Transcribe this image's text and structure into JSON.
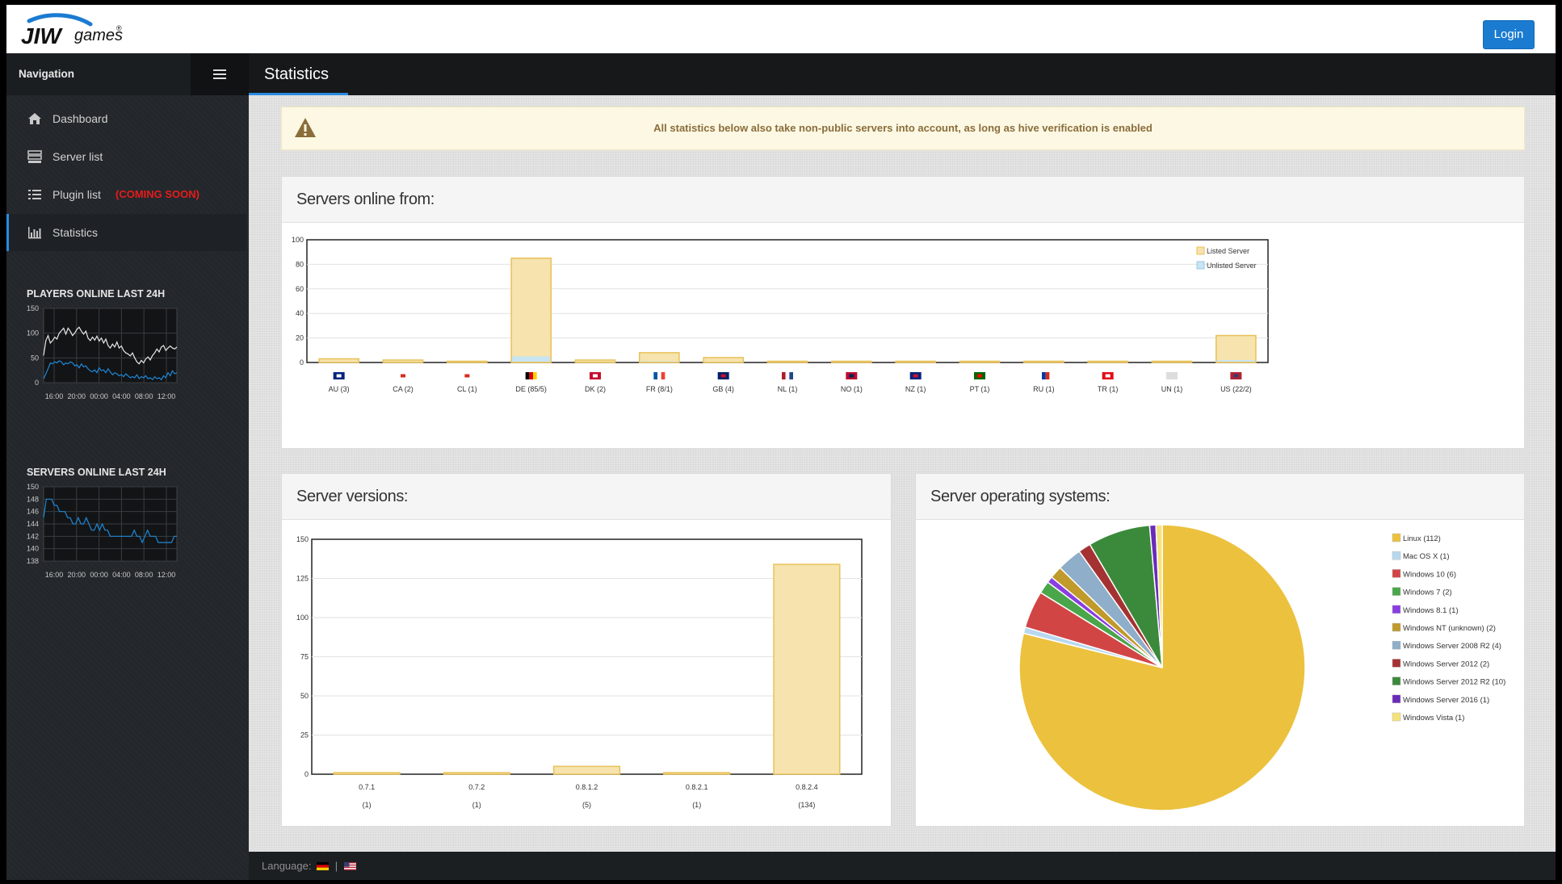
{
  "header": {
    "logo_text": "JIWgames",
    "login_label": "Login"
  },
  "sidebar": {
    "title": "Navigation",
    "items": [
      {
        "label": "Dashboard",
        "icon": "home-icon",
        "active": false
      },
      {
        "label": "Server list",
        "icon": "server-icon",
        "active": false
      },
      {
        "label": "Plugin list",
        "icon": "list-icon",
        "active": false,
        "badge": "(COMING SOON)"
      },
      {
        "label": "Statistics",
        "icon": "bar-chart-icon",
        "active": true
      }
    ],
    "players_heading": "PLAYERS ONLINE LAST 24H",
    "servers_heading": "SERVERS ONLINE LAST 24H"
  },
  "page": {
    "title": "Statistics",
    "alert": "All statistics below also take non-public servers into account, as long as hive verification is enabled"
  },
  "footer": {
    "language_label": "Language:",
    "separator": "|"
  },
  "colors": {
    "accent": "#1a7bd1",
    "listed_fill": "#f6e3ad",
    "listed_stroke": "#e8c25a",
    "unlisted_fill": "#c9e4f2",
    "line_white": "#e8e8e8",
    "line_blue": "#1e88d6"
  },
  "chart_data": [
    {
      "id": "players",
      "type": "line",
      "yticks": [
        150,
        100,
        50,
        0
      ],
      "ylim": [
        0,
        150
      ],
      "xticks": [
        "16:00",
        "20:00",
        "00:00",
        "04:00",
        "08:00",
        "12:00"
      ],
      "series": [
        {
          "values": [
            55,
            85,
            95,
            80,
            85,
            92,
            88,
            100,
            105,
            110,
            98,
            110,
            104,
            95,
            100,
            108,
            112,
            104,
            98,
            104,
            90,
            85,
            92,
            86,
            94,
            84,
            90,
            80,
            88,
            75,
            70,
            78,
            72,
            82,
            70,
            74,
            65,
            60,
            58,
            54,
            60,
            50,
            42,
            38,
            45,
            40,
            48,
            52,
            46,
            55,
            60,
            68,
            62,
            72,
            75,
            65,
            70,
            74,
            70,
            68,
            72
          ]
        },
        {
          "values": [
            8,
            18,
            28,
            40,
            38,
            42,
            40,
            44,
            42,
            36,
            40,
            38,
            42,
            40,
            34,
            36,
            30,
            38,
            32,
            34,
            28,
            24,
            22,
            26,
            20,
            30,
            24,
            26,
            20,
            28,
            22,
            16,
            20,
            18,
            14,
            16,
            12,
            18,
            14,
            10,
            12,
            10,
            16,
            8,
            12,
            10,
            14,
            8,
            10,
            6,
            12,
            8,
            10,
            6,
            14,
            10,
            20,
            14,
            24,
            18,
            20
          ]
        }
      ]
    },
    {
      "id": "servers",
      "type": "line",
      "yticks": [
        150,
        148,
        146,
        144,
        142,
        140,
        138
      ],
      "ylim": [
        138,
        150
      ],
      "xticks": [
        "16:00",
        "20:00",
        "00:00",
        "04:00",
        "08:00",
        "12:00"
      ],
      "series": [
        {
          "values": [
            145,
            148,
            148,
            148,
            147,
            147,
            146,
            146,
            146,
            145,
            145,
            144,
            144,
            145,
            144,
            144,
            145,
            144,
            143,
            143,
            144,
            143,
            144,
            143,
            143,
            142,
            142,
            142,
            142,
            142,
            142,
            142,
            142,
            142,
            143,
            142,
            142,
            141,
            142,
            143,
            142,
            142,
            142,
            141,
            141,
            141,
            141,
            141,
            141,
            142,
            142
          ]
        }
      ]
    },
    {
      "id": "countries",
      "type": "bar",
      "title": "Servers online from:",
      "categories": [
        "AU (3)",
        "CA (2)",
        "CL (1)",
        "DE (85/5)",
        "DK (2)",
        "FR (8/1)",
        "GB (4)",
        "NL (1)",
        "NO (1)",
        "NZ (1)",
        "PT (1)",
        "RU (1)",
        "TR (1)",
        "UN (1)",
        "US (22/2)"
      ],
      "series": [
        {
          "name": "Listed Server",
          "values": [
            3,
            2,
            1,
            85,
            2,
            8,
            4,
            1,
            1,
            1,
            1,
            1,
            1,
            1,
            22
          ]
        },
        {
          "name": "Unlisted Server",
          "values": [
            0,
            0,
            0,
            5,
            0,
            1,
            0,
            0,
            0,
            0,
            0,
            0,
            0,
            0,
            2
          ]
        }
      ],
      "yticks": [
        0,
        20,
        40,
        60,
        80,
        100
      ],
      "ylim": [
        0,
        100
      ],
      "legend": "top-right",
      "grid": true
    },
    {
      "id": "versions",
      "type": "bar",
      "title": "Server versions:",
      "categories": [
        "0.7.1",
        "0.7.2",
        "0.8.1.2",
        "0.8.2.1",
        "0.8.2.4"
      ],
      "counts": [
        "(1)",
        "(1)",
        "(5)",
        "(1)",
        "(134)"
      ],
      "values": [
        1,
        1,
        5,
        1,
        134
      ],
      "yticks": [
        0,
        25,
        50,
        75,
        100,
        125,
        150
      ],
      "ylim": [
        0,
        150
      ],
      "grid": true
    },
    {
      "id": "os",
      "type": "pie",
      "title": "Server operating systems:",
      "legend": "right",
      "slices": [
        {
          "label": "Linux (112)",
          "value": 112,
          "color": "#ecc13e"
        },
        {
          "label": "Mac OS X (1)",
          "value": 1,
          "color": "#b8d8ef"
        },
        {
          "label": "Windows 10 (6)",
          "value": 6,
          "color": "#d24545"
        },
        {
          "label": "Windows 7 (2)",
          "value": 2,
          "color": "#4aa64a"
        },
        {
          "label": "Windows 8.1 (1)",
          "value": 1,
          "color": "#8a3ee0"
        },
        {
          "label": "Windows NT (unknown) (2)",
          "value": 2,
          "color": "#c09a2a"
        },
        {
          "label": "Windows Server 2008 R2 (4)",
          "value": 4,
          "color": "#8eaec9"
        },
        {
          "label": "Windows Server 2012 (2)",
          "value": 2,
          "color": "#a53232"
        },
        {
          "label": "Windows Server 2012 R2 (10)",
          "value": 10,
          "color": "#3b8a3b"
        },
        {
          "label": "Windows Server 2016 (1)",
          "value": 1,
          "color": "#6a2bb8"
        },
        {
          "label": "Windows Vista (1)",
          "value": 1,
          "color": "#f5e27a"
        }
      ]
    }
  ]
}
